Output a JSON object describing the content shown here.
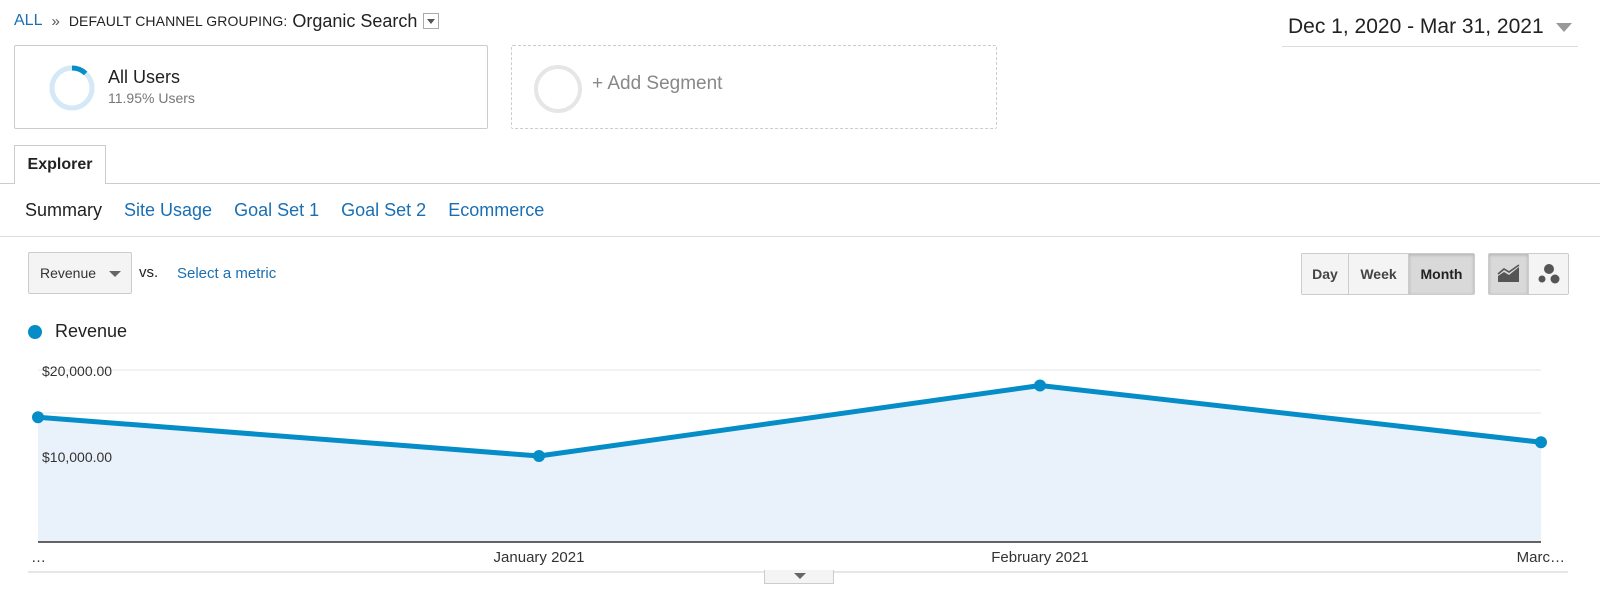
{
  "breadcrumb": {
    "all_label": "ALL",
    "separator": "»",
    "dimension_label": "DEFAULT CHANNEL GROUPING:",
    "dimension_value": "Organic Search"
  },
  "date_range": "Dec 1, 2020 - Mar 31, 2021",
  "segments": {
    "all_users": {
      "title": "All Users",
      "subtitle": "11.95% Users",
      "percent": 11.95
    },
    "add_segment": "+ Add Segment"
  },
  "tabs": {
    "explorer": "Explorer"
  },
  "subnav": {
    "summary": "Summary",
    "site_usage": "Site Usage",
    "goal_set_1": "Goal Set 1",
    "goal_set_2": "Goal Set 2",
    "ecommerce": "Ecommerce"
  },
  "metric_controls": {
    "primary_metric": "Revenue",
    "vs_label": "vs.",
    "select_metric": "Select a metric"
  },
  "period_buttons": {
    "day": "Day",
    "week": "Week",
    "month": "Month",
    "selected": "Month"
  },
  "view_buttons": {
    "line_icon": "line-chart-icon",
    "motion_icon": "motion-chart-icon",
    "selected": "line"
  },
  "colors": {
    "accent": "#058dc7",
    "area_fill": "#e9f1fa",
    "link": "#1a6fb3"
  },
  "chart_data": {
    "type": "area",
    "categories": [
      "…",
      "January 2021",
      "February 2021",
      "Marc…"
    ],
    "series": [
      {
        "name": "Revenue",
        "values": [
          14500,
          10000,
          18200,
          11600
        ]
      }
    ],
    "ylim": [
      0,
      20000
    ],
    "y_ticks": [
      20000,
      10000
    ],
    "y_tick_labels": [
      "$20,000.00",
      "$10,000.00"
    ],
    "grid": true
  }
}
